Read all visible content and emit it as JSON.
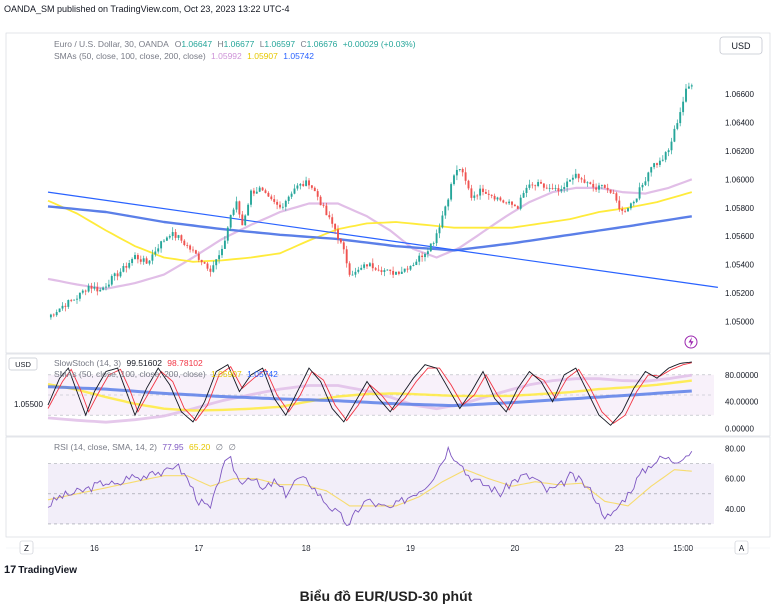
{
  "header": {
    "published": "OANDA_SM published on TradingView.com, Oct 23, 2023 13:22 UTC-4"
  },
  "main_legend": {
    "title": "Euro / U.S. Dollar, 30, OANDA",
    "o_label": "O",
    "o_value": "1.06647",
    "h_label": "H",
    "h_value": "1.06677",
    "l_label": "L",
    "l_value": "1.06597",
    "c_label": "C",
    "c_value": "1.06676",
    "change": "+0.00029 (+0.03%)",
    "sma_title": "SMAs (50, close, 100, close, 200, close)",
    "sma50": "1.05992",
    "sma100": "1.05907",
    "sma200": "1.05742"
  },
  "currency_badge": "USD",
  "left_badge": "USD",
  "left_price": "1.05500",
  "stoch_legend": {
    "title": "SlowStoch (14, 3)",
    "k": "99.51602",
    "d": "98.78102",
    "overlay_title": "SMAs (50, close, 100, close, 200, close)",
    "overlay_a": "1.05907",
    "overlay_b": "1.05742"
  },
  "rsi_legend": {
    "title": "RSI (14, close, SMA, 14, 2)",
    "rsi": "77.95",
    "sma": "65.20",
    "z1": "∅",
    "z2": "∅"
  },
  "bottom": {
    "zoom": "Z",
    "auto": "A"
  },
  "footer": {
    "logo_glyph": "17",
    "logo_text": "TradingView"
  },
  "caption": "Biểu đồ EUR/USD-30 phút",
  "chart_data": {
    "type": "candlestick",
    "symbol": "EURUSD",
    "timeframe": "30",
    "x_ticks": [
      {
        "label": "16",
        "idx": 16
      },
      {
        "label": "17",
        "idx": 52
      },
      {
        "label": "18",
        "idx": 89
      },
      {
        "label": "19",
        "idx": 125
      },
      {
        "label": "20",
        "idx": 161
      },
      {
        "label": "23",
        "idx": 197
      },
      {
        "label": "15:00",
        "idx": 219
      }
    ],
    "price_ticks": [
      "1.06600",
      "1.06400",
      "1.06200",
      "1.06000",
      "1.05800",
      "1.05600",
      "1.05400",
      "1.05200",
      "1.05000"
    ],
    "ylim": [
      1.0487,
      1.0698
    ],
    "anchors": [
      [
        0,
        1.0503
      ],
      [
        5,
        1.0511
      ],
      [
        10,
        1.0517
      ],
      [
        14,
        1.0525
      ],
      [
        18,
        1.0522
      ],
      [
        22,
        1.053
      ],
      [
        26,
        1.0537
      ],
      [
        30,
        1.0546
      ],
      [
        34,
        1.0541
      ],
      [
        38,
        1.0553
      ],
      [
        42,
        1.0562
      ],
      [
        45,
        1.0559
      ],
      [
        48,
        1.0553
      ],
      [
        52,
        1.0545
      ],
      [
        56,
        1.0537
      ],
      [
        60,
        1.0549
      ],
      [
        63,
        1.0575
      ],
      [
        65,
        1.0583
      ],
      [
        67,
        1.0568
      ],
      [
        70,
        1.0591
      ],
      [
        73,
        1.0593
      ],
      [
        76,
        1.0586
      ],
      [
        80,
        1.058
      ],
      [
        85,
        1.0594
      ],
      [
        90,
        1.0598
      ],
      [
        93,
        1.0588
      ],
      [
        96,
        1.0575
      ],
      [
        99,
        1.0565
      ],
      [
        102,
        1.0549
      ],
      [
        104,
        1.0535
      ],
      [
        106,
        1.0534
      ],
      [
        110,
        1.054
      ],
      [
        114,
        1.0538
      ],
      [
        118,
        1.0534
      ],
      [
        122,
        1.0536
      ],
      [
        126,
        1.0541
      ],
      [
        130,
        1.0549
      ],
      [
        133,
        1.0557
      ],
      [
        135,
        1.0568
      ],
      [
        138,
        1.0588
      ],
      [
        140,
        1.0603
      ],
      [
        142,
        1.0608
      ],
      [
        144,
        1.0598
      ],
      [
        146,
        1.0588
      ],
      [
        150,
        1.0593
      ],
      [
        154,
        1.0588
      ],
      [
        158,
        1.0583
      ],
      [
        162,
        1.0581
      ],
      [
        165,
        1.0594
      ],
      [
        169,
        1.0596
      ],
      [
        173,
        1.0593
      ],
      [
        177,
        1.0591
      ],
      [
        181,
        1.0603
      ],
      [
        185,
        1.0598
      ],
      [
        189,
        1.0593
      ],
      [
        192,
        1.0596
      ],
      [
        195,
        1.0588
      ],
      [
        198,
        1.0577
      ],
      [
        202,
        1.0585
      ],
      [
        205,
        1.0596
      ],
      [
        208,
        1.061
      ],
      [
        211,
        1.0612
      ],
      [
        214,
        1.062
      ],
      [
        216,
        1.0634
      ],
      [
        218,
        1.0648
      ],
      [
        220,
        1.0662
      ],
      [
        222,
        1.0668
      ]
    ],
    "sma_lines": [
      {
        "name": "SMA50",
        "color": "#e1bee7",
        "pts": [
          [
            0,
            1.053
          ],
          [
            10,
            1.0526
          ],
          [
            20,
            1.0523
          ],
          [
            30,
            1.0527
          ],
          [
            40,
            1.0533
          ],
          [
            50,
            1.0545
          ],
          [
            60,
            1.0558
          ],
          [
            70,
            1.0568
          ],
          [
            80,
            1.0577
          ],
          [
            90,
            1.0583
          ],
          [
            100,
            1.0583
          ],
          [
            110,
            1.0574
          ],
          [
            118,
            1.0564
          ],
          [
            126,
            1.0551
          ],
          [
            134,
            1.0545
          ],
          [
            142,
            1.0552
          ],
          [
            150,
            1.0563
          ],
          [
            158,
            1.0574
          ],
          [
            166,
            1.0584
          ],
          [
            174,
            1.0591
          ],
          [
            182,
            1.0594
          ],
          [
            190,
            1.0594
          ],
          [
            198,
            1.0591
          ],
          [
            206,
            1.059
          ],
          [
            214,
            1.0594
          ],
          [
            222,
            1.06
          ]
        ]
      },
      {
        "name": "SMA100",
        "color": "#ffeb3b",
        "pts": [
          [
            0,
            1.0585
          ],
          [
            10,
            1.0576
          ],
          [
            20,
            1.0564
          ],
          [
            30,
            1.0553
          ],
          [
            40,
            1.0545
          ],
          [
            50,
            1.0542
          ],
          [
            60,
            1.0543
          ],
          [
            70,
            1.0545
          ],
          [
            80,
            1.0548
          ],
          [
            90,
            1.0557
          ],
          [
            100,
            1.0565
          ],
          [
            110,
            1.0569
          ],
          [
            120,
            1.057
          ],
          [
            130,
            1.0568
          ],
          [
            140,
            1.0566
          ],
          [
            150,
            1.0566
          ],
          [
            160,
            1.0566
          ],
          [
            170,
            1.0569
          ],
          [
            180,
            1.0572
          ],
          [
            190,
            1.0577
          ],
          [
            200,
            1.058
          ],
          [
            210,
            1.0584
          ],
          [
            222,
            1.0591
          ]
        ]
      },
      {
        "name": "SMA200",
        "color": "#5b7fe8",
        "pts": [
          [
            0,
            1.0581
          ],
          [
            20,
            1.0577
          ],
          [
            40,
            1.057
          ],
          [
            60,
            1.0565
          ],
          [
            80,
            1.0561
          ],
          [
            100,
            1.0558
          ],
          [
            120,
            1.0553
          ],
          [
            140,
            1.055
          ],
          [
            160,
            1.0555
          ],
          [
            180,
            1.0561
          ],
          [
            200,
            1.0567
          ],
          [
            222,
            1.0574
          ]
        ]
      }
    ],
    "trendline": {
      "color": "#2962ff",
      "from": [
        0,
        1.0591
      ],
      "to": [
        231,
        1.0524
      ]
    },
    "stoch": {
      "range": [
        -5,
        105
      ],
      "levels": [
        20,
        50,
        80
      ],
      "tick_labels": [
        "80.00000",
        "40.00000",
        "0.00000"
      ],
      "k_anchors": [
        [
          0,
          35
        ],
        [
          4,
          75
        ],
        [
          7,
          90
        ],
        [
          10,
          55
        ],
        [
          13,
          20
        ],
        [
          16,
          55
        ],
        [
          20,
          85
        ],
        [
          24,
          90
        ],
        [
          27,
          55
        ],
        [
          30,
          20
        ],
        [
          34,
          60
        ],
        [
          38,
          90
        ],
        [
          42,
          65
        ],
        [
          46,
          25
        ],
        [
          50,
          10
        ],
        [
          54,
          40
        ],
        [
          58,
          85
        ],
        [
          62,
          95
        ],
        [
          66,
          55
        ],
        [
          70,
          80
        ],
        [
          74,
          90
        ],
        [
          78,
          45
        ],
        [
          82,
          20
        ],
        [
          86,
          55
        ],
        [
          90,
          90
        ],
        [
          94,
          70
        ],
        [
          98,
          30
        ],
        [
          102,
          10
        ],
        [
          106,
          40
        ],
        [
          110,
          70
        ],
        [
          114,
          45
        ],
        [
          118,
          25
        ],
        [
          122,
          50
        ],
        [
          126,
          75
        ],
        [
          130,
          95
        ],
        [
          134,
          90
        ],
        [
          138,
          60
        ],
        [
          142,
          30
        ],
        [
          146,
          55
        ],
        [
          150,
          85
        ],
        [
          154,
          45
        ],
        [
          158,
          25
        ],
        [
          162,
          60
        ],
        [
          166,
          85
        ],
        [
          170,
          70
        ],
        [
          174,
          40
        ],
        [
          178,
          80
        ],
        [
          182,
          90
        ],
        [
          186,
          55
        ],
        [
          190,
          20
        ],
        [
          194,
          5
        ],
        [
          198,
          25
        ],
        [
          202,
          60
        ],
        [
          206,
          85
        ],
        [
          210,
          75
        ],
        [
          214,
          90
        ],
        [
          218,
          97
        ],
        [
          222,
          99
        ]
      ],
      "d_anchors": [
        [
          0,
          30
        ],
        [
          5,
          70
        ],
        [
          8,
          88
        ],
        [
          11,
          60
        ],
        [
          14,
          25
        ],
        [
          17,
          50
        ],
        [
          21,
          80
        ],
        [
          25,
          88
        ],
        [
          28,
          60
        ],
        [
          31,
          25
        ],
        [
          35,
          55
        ],
        [
          39,
          85
        ],
        [
          43,
          70
        ],
        [
          47,
          30
        ],
        [
          51,
          12
        ],
        [
          55,
          35
        ],
        [
          59,
          80
        ],
        [
          63,
          92
        ],
        [
          67,
          60
        ],
        [
          71,
          75
        ],
        [
          75,
          88
        ],
        [
          79,
          50
        ],
        [
          83,
          25
        ],
        [
          87,
          50
        ],
        [
          91,
          85
        ],
        [
          95,
          72
        ],
        [
          99,
          35
        ],
        [
          103,
          12
        ],
        [
          107,
          35
        ],
        [
          111,
          65
        ],
        [
          115,
          50
        ],
        [
          119,
          28
        ],
        [
          123,
          45
        ],
        [
          127,
          70
        ],
        [
          131,
          90
        ],
        [
          135,
          90
        ],
        [
          139,
          65
        ],
        [
          143,
          35
        ],
        [
          147,
          50
        ],
        [
          151,
          80
        ],
        [
          155,
          50
        ],
        [
          159,
          28
        ],
        [
          163,
          55
        ],
        [
          167,
          80
        ],
        [
          171,
          72
        ],
        [
          175,
          45
        ],
        [
          179,
          75
        ],
        [
          183,
          88
        ],
        [
          187,
          60
        ],
        [
          191,
          25
        ],
        [
          195,
          8
        ],
        [
          199,
          20
        ],
        [
          203,
          55
        ],
        [
          207,
          80
        ],
        [
          211,
          78
        ],
        [
          215,
          88
        ],
        [
          219,
          95
        ],
        [
          222,
          98
        ]
      ]
    },
    "rsi": {
      "range": [
        24,
        85
      ],
      "levels": [
        30,
        50,
        70
      ],
      "tick_labels": [
        "80.00",
        "60.00",
        "40.00"
      ],
      "rsi_anchors": [
        [
          0,
          42
        ],
        [
          4,
          48
        ],
        [
          8,
          50
        ],
        [
          12,
          52
        ],
        [
          16,
          55
        ],
        [
          20,
          58
        ],
        [
          24,
          55
        ],
        [
          28,
          62
        ],
        [
          32,
          60
        ],
        [
          36,
          66
        ],
        [
          40,
          63
        ],
        [
          44,
          70
        ],
        [
          48,
          60
        ],
        [
          52,
          45
        ],
        [
          56,
          40
        ],
        [
          58,
          52
        ],
        [
          60,
          68
        ],
        [
          63,
          72
        ],
        [
          66,
          58
        ],
        [
          70,
          62
        ],
        [
          74,
          52
        ],
        [
          78,
          58
        ],
        [
          82,
          50
        ],
        [
          86,
          60
        ],
        [
          90,
          58
        ],
        [
          94,
          48
        ],
        [
          98,
          40
        ],
        [
          102,
          33
        ],
        [
          104,
          28
        ],
        [
          106,
          38
        ],
        [
          110,
          46
        ],
        [
          114,
          42
        ],
        [
          118,
          40
        ],
        [
          122,
          45
        ],
        [
          126,
          50
        ],
        [
          130,
          55
        ],
        [
          133,
          62
        ],
        [
          136,
          72
        ],
        [
          138,
          80
        ],
        [
          140,
          75
        ],
        [
          142,
          72
        ],
        [
          144,
          64
        ],
        [
          148,
          58
        ],
        [
          152,
          55
        ],
        [
          156,
          50
        ],
        [
          160,
          58
        ],
        [
          164,
          62
        ],
        [
          168,
          60
        ],
        [
          172,
          52
        ],
        [
          176,
          54
        ],
        [
          180,
          62
        ],
        [
          184,
          58
        ],
        [
          188,
          50
        ],
        [
          190,
          42
        ],
        [
          192,
          36
        ],
        [
          194,
          34
        ],
        [
          196,
          40
        ],
        [
          198,
          45
        ],
        [
          200,
          50
        ],
        [
          204,
          62
        ],
        [
          208,
          70
        ],
        [
          212,
          74
        ],
        [
          216,
          72
        ],
        [
          220,
          76
        ],
        [
          222,
          78
        ]
      ],
      "sma_anchors": [
        [
          0,
          46
        ],
        [
          10,
          50
        ],
        [
          20,
          54
        ],
        [
          30,
          58
        ],
        [
          40,
          62
        ],
        [
          48,
          62
        ],
        [
          56,
          55
        ],
        [
          64,
          60
        ],
        [
          72,
          60
        ],
        [
          80,
          56
        ],
        [
          88,
          56
        ],
        [
          96,
          52
        ],
        [
          104,
          42
        ],
        [
          112,
          42
        ],
        [
          120,
          42
        ],
        [
          128,
          48
        ],
        [
          136,
          58
        ],
        [
          144,
          66
        ],
        [
          152,
          60
        ],
        [
          160,
          55
        ],
        [
          168,
          58
        ],
        [
          176,
          56
        ],
        [
          184,
          57
        ],
        [
          192,
          45
        ],
        [
          200,
          42
        ],
        [
          208,
          55
        ],
        [
          216,
          66
        ],
        [
          222,
          65
        ]
      ]
    }
  }
}
